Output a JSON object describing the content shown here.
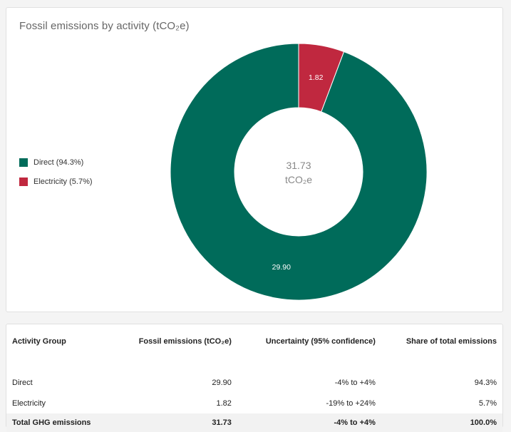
{
  "chart_data": {
    "type": "pie",
    "title": "Fossil emissions by activity (tCO₂e)",
    "categories": [
      "Direct",
      "Electricity"
    ],
    "values": [
      29.9,
      1.82
    ],
    "value_labels": [
      "29.90",
      "1.82"
    ],
    "legend": [
      "Direct (94.3%)",
      "Electricity (5.7%)"
    ],
    "legend_position": "left",
    "colors": [
      "#006b5a",
      "#c0283f"
    ],
    "donut": true,
    "center_label": {
      "value": "31.73",
      "unit": "tCO₂e"
    }
  },
  "table": {
    "headers": [
      "Activity Group",
      "Fossil emissions (tCO₂e)",
      "Uncertainty (95% confidence)",
      "Share of total emissions"
    ],
    "rows": [
      [
        "Direct",
        "29.90",
        "-4% to +4%",
        "94.3%"
      ],
      [
        "Electricity",
        "1.82",
        "-19% to +24%",
        "5.7%"
      ]
    ],
    "total": [
      "Total GHG emissions",
      "31.73",
      "-4% to +4%",
      "100.0%"
    ]
  }
}
